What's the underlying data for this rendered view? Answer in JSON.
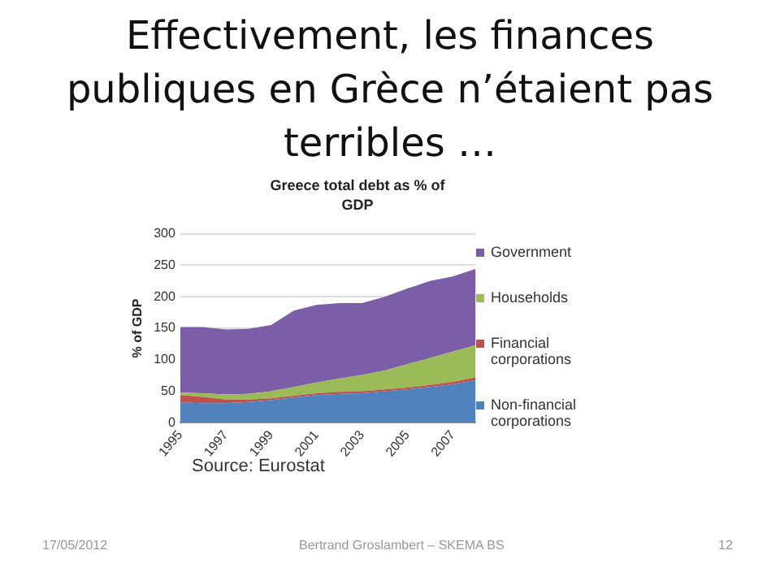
{
  "chart_data": {
    "type": "area",
    "stacked": true,
    "title": "Greece total debt as % of GDP",
    "ylabel": "% of GDP",
    "categories": [
      "1995",
      null,
      "1997",
      null,
      "1999",
      null,
      "2001",
      null,
      "2003",
      null,
      "2005",
      null,
      "2007",
      null
    ],
    "series": [
      {
        "name": "Non-financial corporations",
        "color": "#4f81bd",
        "values": [
          32,
          31,
          31,
          33,
          36,
          40,
          44,
          46,
          47,
          50,
          53,
          57,
          61,
          68
        ]
      },
      {
        "name": "Financial corporations",
        "color": "#c0504d",
        "values": [
          12,
          10,
          6,
          4,
          3,
          3,
          3,
          3,
          3,
          3,
          3,
          3,
          4,
          4
        ]
      },
      {
        "name": "Households",
        "color": "#9bbb59",
        "values": [
          4,
          6,
          8,
          9,
          11,
          14,
          17,
          21,
          26,
          30,
          37,
          43,
          48,
          51
        ]
      },
      {
        "name": "Government",
        "color": "#7b5ea7",
        "values": [
          104,
          105,
          103,
          103,
          105,
          121,
          123,
          120,
          114,
          117,
          120,
          122,
          119,
          121
        ]
      }
    ],
    "ylim": [
      0,
      300
    ],
    "yticks": [
      0,
      50,
      100,
      150,
      200,
      250,
      300
    ],
    "grid": "y",
    "legend": "right",
    "annotations": [
      "Effectivement, les finances publiques en Grèce n’étaient pas terribles …",
      "Source: Eurostat",
      "17/05/2012",
      "Bertrand Groslambert – SKEMA BS",
      "12"
    ]
  }
}
